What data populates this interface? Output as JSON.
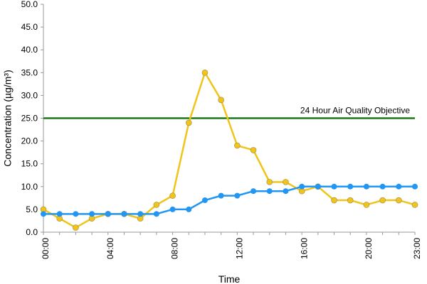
{
  "chart_data": {
    "type": "line",
    "title": "",
    "xlabel": "Time",
    "ylabel": "Concentration (µg/m³)",
    "ylim": [
      0,
      50
    ],
    "y_ticks": [
      "0.0",
      "5.0",
      "10.0",
      "15.0",
      "20.0",
      "25.0",
      "30.0",
      "35.0",
      "40.0",
      "45.0",
      "50.0"
    ],
    "x": [
      0,
      1,
      2,
      3,
      4,
      5,
      6,
      7,
      8,
      9,
      10,
      11,
      12,
      13,
      14,
      15,
      16,
      17,
      18,
      19,
      20,
      21,
      22,
      23
    ],
    "x_tick_labels": [
      {
        "x": 0,
        "label": "00:00"
      },
      {
        "x": 4,
        "label": "04:00"
      },
      {
        "x": 8,
        "label": "08:00"
      },
      {
        "x": 12,
        "label": "12:00"
      },
      {
        "x": 16,
        "label": "16:00"
      },
      {
        "x": 20,
        "label": "20:00"
      },
      {
        "x": 23,
        "label": "23:00"
      }
    ],
    "grid": false,
    "legend": "none",
    "series": [
      {
        "color": "#f0c419",
        "values": [
          5,
          3,
          1,
          3,
          4,
          4,
          3,
          6,
          8,
          24,
          35,
          29,
          19,
          18,
          11,
          11,
          9,
          10,
          7,
          7,
          6,
          7,
          7,
          6
        ]
      },
      {
        "color": "#2196f3",
        "values": [
          4,
          4,
          4,
          4,
          4,
          4,
          4,
          4,
          5,
          5,
          7,
          8,
          8,
          9,
          9,
          9,
          10,
          10,
          10,
          10,
          10,
          10,
          10,
          10
        ]
      }
    ],
    "reference_line": {
      "value": 25,
      "label": "24 Hour Air Quality Objective",
      "color": "#1a7a1a"
    }
  }
}
